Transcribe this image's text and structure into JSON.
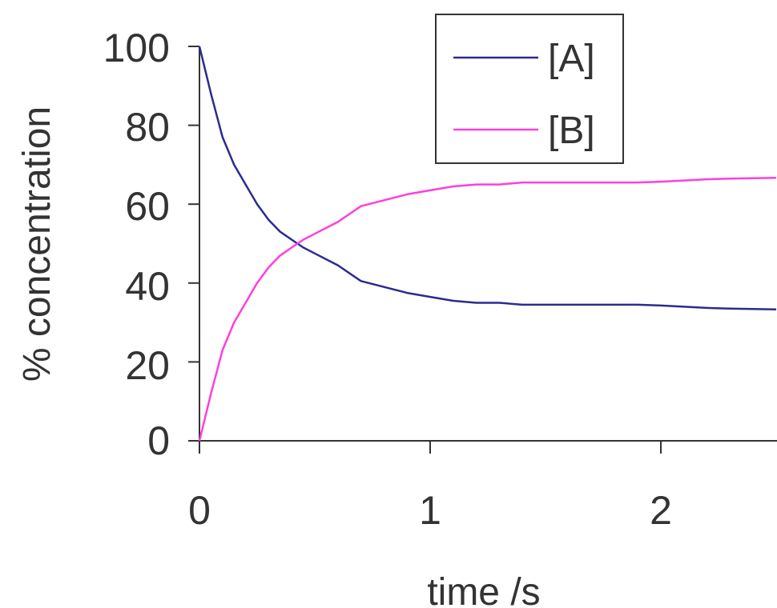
{
  "chart_data": {
    "type": "line",
    "xlabel": "time /s",
    "ylabel": "% concentration",
    "xlim": [
      0,
      2.5
    ],
    "ylim": [
      0,
      100
    ],
    "x_ticks": [
      "0",
      "1",
      "2"
    ],
    "y_ticks": [
      "0",
      "20",
      "40",
      "60",
      "80",
      "100"
    ],
    "grid": false,
    "legend_position": "top-right",
    "series": [
      {
        "name": "[A]",
        "color": "#2b2b8f",
        "x": [
          0,
          0.05,
          0.1,
          0.15,
          0.2,
          0.25,
          0.3,
          0.35,
          0.4,
          0.45,
          0.5,
          0.6,
          0.7,
          0.8,
          0.9,
          1.0,
          1.1,
          1.2,
          1.3,
          1.4,
          1.5,
          1.6,
          1.7,
          1.8,
          1.9,
          2.0,
          2.1,
          2.2,
          2.3,
          2.4,
          2.5
        ],
        "values": [
          100,
          88,
          77,
          70,
          65,
          60,
          56,
          53,
          51,
          49,
          47.5,
          44.5,
          40.5,
          39,
          37.5,
          36.5,
          35.5,
          35,
          35,
          34.5,
          34.5,
          34.5,
          34.5,
          34.5,
          34.5,
          34.3,
          34,
          33.7,
          33.5,
          33.4,
          33.3
        ]
      },
      {
        "name": "[B]",
        "color": "#ff3fdc",
        "x": [
          0,
          0.05,
          0.1,
          0.15,
          0.2,
          0.25,
          0.3,
          0.35,
          0.4,
          0.45,
          0.5,
          0.6,
          0.7,
          0.8,
          0.9,
          1.0,
          1.1,
          1.2,
          1.3,
          1.4,
          1.5,
          1.6,
          1.7,
          1.8,
          1.9,
          2.0,
          2.1,
          2.2,
          2.3,
          2.4,
          2.5
        ],
        "values": [
          0,
          12,
          23,
          30,
          35,
          40,
          44,
          47,
          49,
          51,
          52.5,
          55.5,
          59.5,
          61,
          62.5,
          63.5,
          64.5,
          65,
          65,
          65.5,
          65.5,
          65.5,
          65.5,
          65.5,
          65.5,
          65.7,
          66,
          66.3,
          66.5,
          66.6,
          66.7
        ]
      }
    ]
  }
}
